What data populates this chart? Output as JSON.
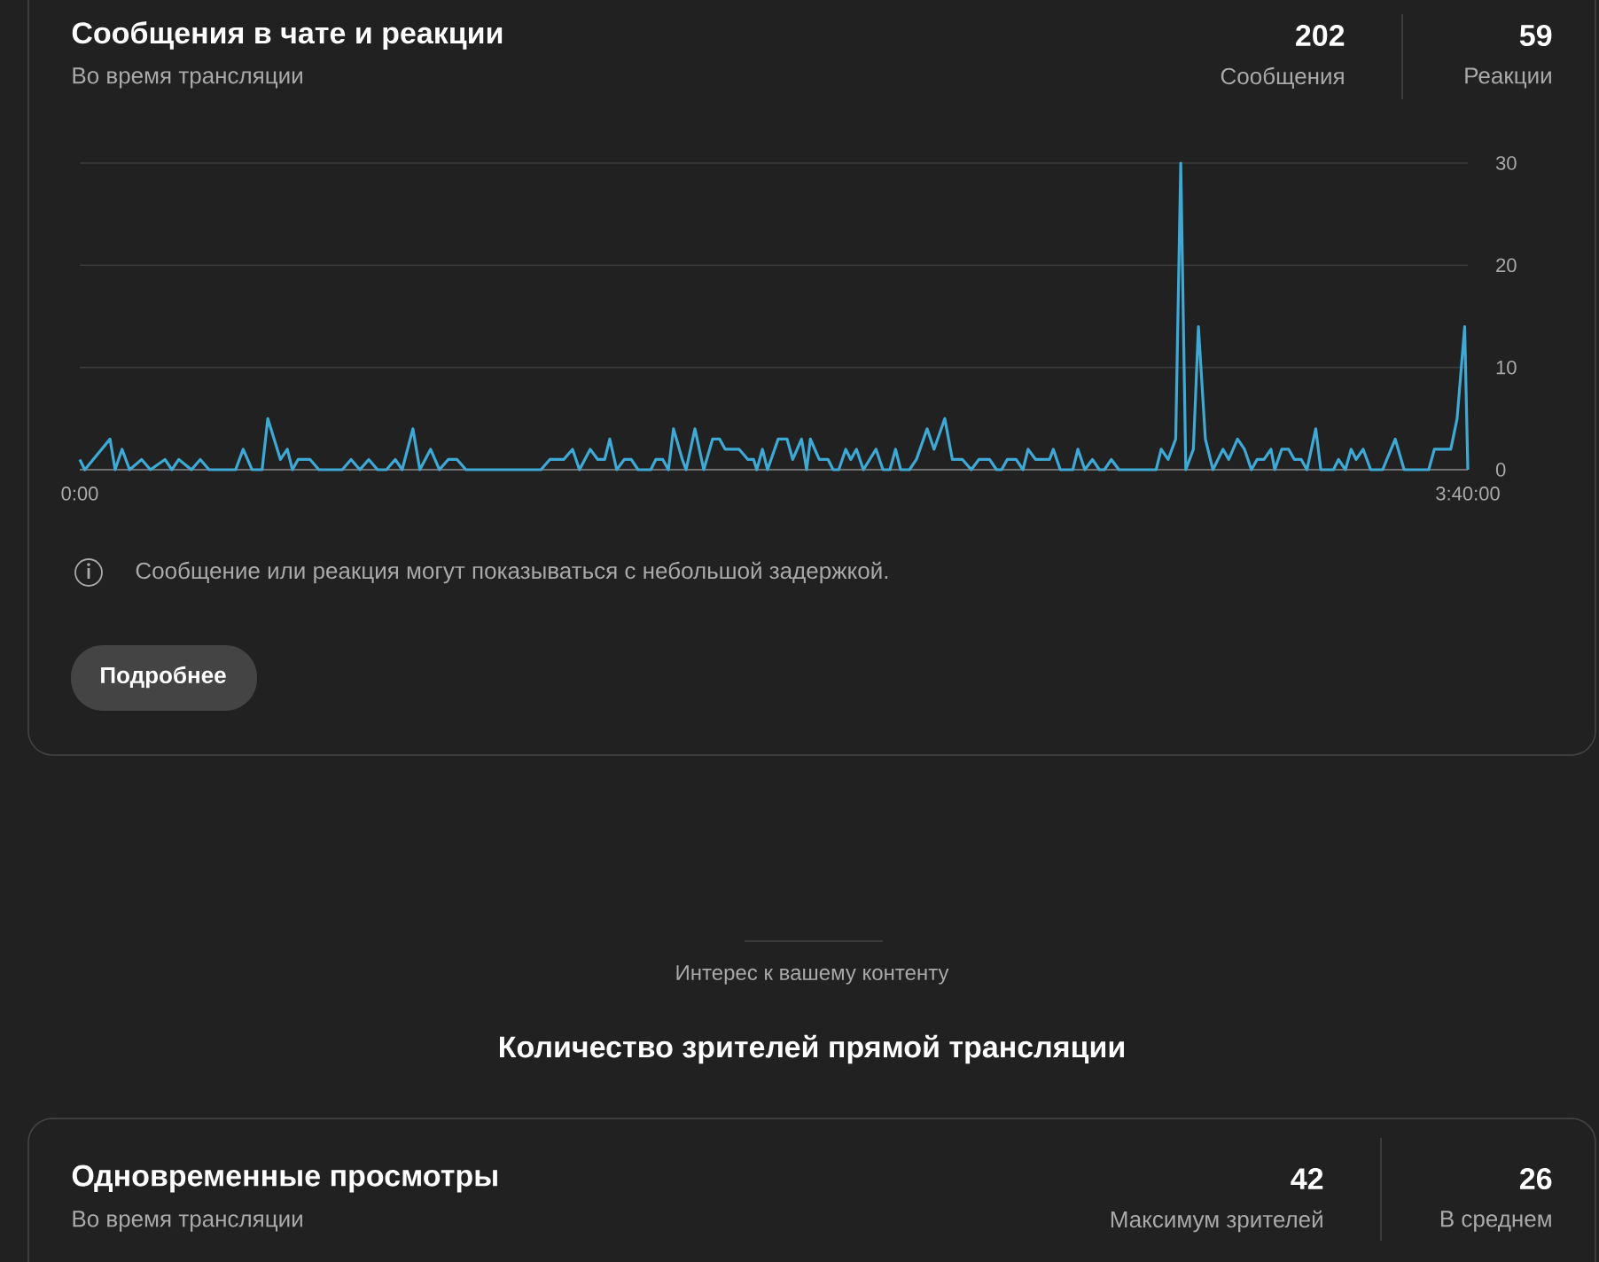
{
  "chart_data": {
    "type": "line",
    "title": "Сообщения в чате и реакции",
    "subtitle": "Во время трансляции",
    "annotations": [
      "202",
      "Сообщения",
      "59",
      "Реакции",
      "Сообщение или реакция могут показываться с небольшой задержкой.",
      "Подробнее",
      "Интерес к вашему контенту",
      "Количество зрителей прямой трансляции",
      "Одновременные просмотры",
      "Во время трансляции",
      "42",
      "Максимум зрителей",
      "26",
      "В среднем"
    ],
    "x": [
      0,
      0.8,
      4.8,
      5.6,
      6.7,
      7.9,
      9.8,
      11.2,
      13.5,
      14.6,
      15.7,
      17.7,
      19.1,
      20.5,
      24.7,
      25.9,
      27.3,
      28.9,
      29.8,
      31.8,
      32.9,
      33.7,
      34.6,
      36.5,
      37.9,
      41.6,
      43.0,
      44.4,
      45.8,
      47.2,
      48.6,
      50.0,
      51.1,
      52.8,
      53.9,
      55.6,
      57.0,
      58.4,
      59.8,
      61.2,
      73.1,
      74.5,
      76.7,
      78.1,
      79.2,
      80.9,
      82.1,
      83.2,
      84.0,
      85.1,
      86.3,
      87.4,
      88.5,
      90.5,
      91.3,
      92.4,
      93.3,
      94.1,
      95.5,
      96.1,
      97.5,
      98.9,
      100.3,
      101.4,
      102.3,
      104.5,
      105.9,
      106.8,
      107.3,
      108.2,
      109.0,
      110.7,
      112.1,
      113.0,
      114.4,
      115.2,
      115.8,
      117.2,
      118.6,
      119.4,
      120.3,
      121.4,
      122.2,
      123.1,
      124.2,
      126.2,
      127.3,
      128.4,
      129.3,
      130.1,
      131.5,
      132.6,
      134.3,
      135.4,
      137.1,
      138.3,
      139.9,
      141.3,
      142.5,
      144.2,
      145.3,
      146.1,
      147.0,
      148.4,
      149.5,
      150.3,
      151.5,
      153.7,
      154.3,
      155.4,
      157.4,
      158.2,
      159.3,
      160.5,
      161.6,
      162.4,
      163.5,
      164.7,
      170.6,
      171.4,
      172.5,
      173.7,
      174.5,
      175.3,
      176.5,
      177.3,
      178.4,
      179.6,
      181.2,
      182.1,
      183.5,
      184.6,
      185.7,
      186.6,
      187.7,
      188.8,
      189.4,
      190.5,
      191.6,
      192.5,
      193.6,
      194.5,
      195.9,
      196.7,
      198.7,
      199.5,
      200.6,
      201.5,
      202.3,
      203.4,
      204.6,
      206.5,
      208.5,
      209.9,
      213.8,
      214.7,
      217.3,
      218.3,
      219.5,
      220
    ],
    "values": [
      1,
      0,
      3,
      0,
      2,
      0,
      1,
      0,
      1,
      0,
      1,
      0,
      1,
      0,
      0,
      2,
      0,
      0,
      5,
      1,
      2,
      0,
      1,
      1,
      0,
      0,
      1,
      0,
      1,
      0,
      0,
      1,
      0,
      4,
      0,
      2,
      0,
      1,
      1,
      0,
      0,
      1,
      1,
      2,
      0,
      2,
      1,
      1,
      3,
      0,
      1,
      1,
      0,
      0,
      1,
      1,
      0,
      4,
      1,
      0,
      4,
      0,
      3,
      3,
      2,
      2,
      1,
      1,
      0,
      2,
      0,
      3,
      3,
      1,
      3,
      0,
      3,
      1,
      1,
      0,
      0,
      2,
      1,
      2,
      0,
      2,
      0,
      0,
      2,
      0,
      0,
      1,
      4,
      2,
      5,
      1,
      1,
      0,
      1,
      1,
      0,
      0,
      1,
      1,
      0,
      2,
      1,
      1,
      2,
      0,
      0,
      2,
      0,
      1,
      0,
      0,
      1,
      0,
      0,
      2,
      1,
      3,
      30,
      0,
      2,
      14,
      3,
      0,
      2,
      1,
      3,
      2,
      0,
      1,
      1,
      2,
      0,
      2,
      2,
      1,
      1,
      0,
      4,
      0,
      0,
      1,
      0,
      2,
      1,
      2,
      0,
      0,
      3,
      0,
      0,
      2,
      2,
      5,
      14,
      0
    ],
    "color": "#3fa9d6",
    "xlim": [
      0,
      220
    ],
    "xticks": [
      {
        "value": 0,
        "label": "0:00"
      },
      {
        "value": 220,
        "label": "3:40:00"
      }
    ],
    "ylim": [
      0,
      30
    ],
    "yticks": [
      0,
      10,
      20,
      30
    ],
    "grid": "y"
  }
}
